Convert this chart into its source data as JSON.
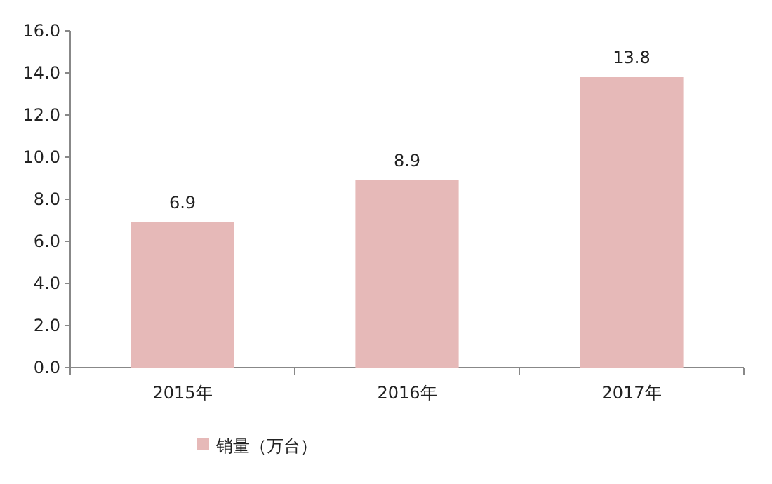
{
  "chart_data": {
    "type": "bar",
    "categories": [
      "2015年",
      "2016年",
      "2017年"
    ],
    "series": [
      {
        "name": "销量（万台）",
        "color": "#e6b9b8",
        "values": [
          6.9,
          8.9,
          13.8
        ]
      }
    ],
    "ylim": [
      0,
      16
    ],
    "yticks": [
      {
        "value": 0,
        "label": "0.0"
      },
      {
        "value": 2,
        "label": "2.0"
      },
      {
        "value": 4,
        "label": "4.0"
      },
      {
        "value": 6,
        "label": "6.0"
      },
      {
        "value": 8,
        "label": "8.0"
      },
      {
        "value": 10,
        "label": "10.0"
      },
      {
        "value": 12,
        "label": "12.0"
      },
      {
        "value": 14,
        "label": "14.0"
      },
      {
        "value": 16,
        "label": "16.0"
      }
    ],
    "data_labels": true,
    "legend": "bottom left"
  }
}
